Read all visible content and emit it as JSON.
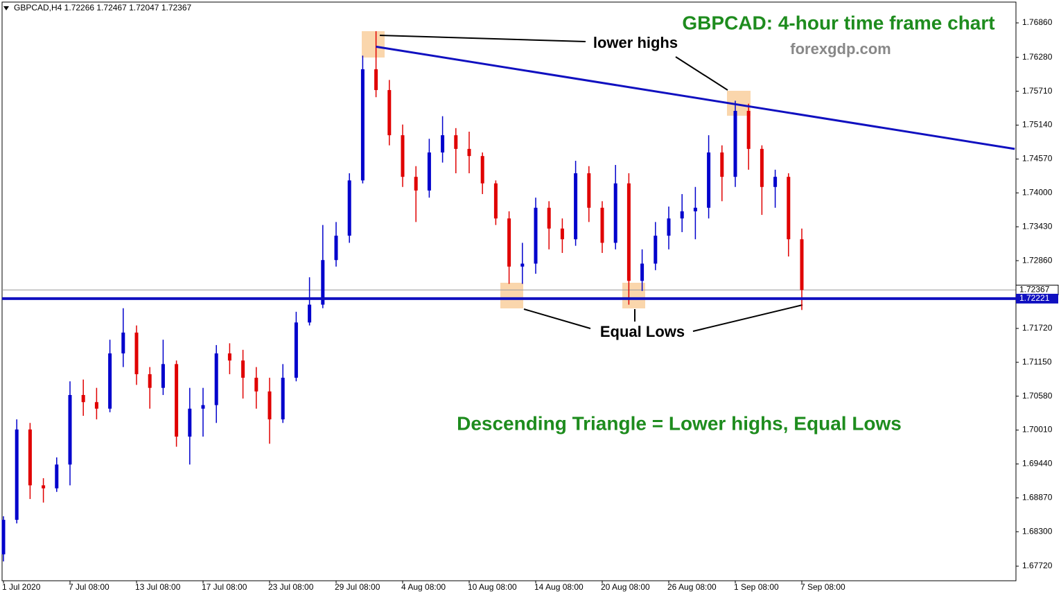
{
  "chart_data": {
    "type": "candlestick",
    "header": "GBPCAD,H4  1.72266 1.72467 1.72047 1.72367",
    "title": "GBPCAD: 4-hour time frame chart",
    "subtitle": "forexgdp.com",
    "annotations": [
      "lower highs",
      "Equal Lows",
      "Descending Triangle = Lower highs, Equal Lows"
    ],
    "up_color": "#0000cc",
    "down_color": "#e00000",
    "categories": [
      "1 Jul 2020",
      null,
      null,
      null,
      null,
      "7 Jul 08:00",
      null,
      null,
      null,
      null,
      "13 Jul 08:00",
      null,
      null,
      null,
      null,
      "17 Jul 08:00",
      null,
      null,
      null,
      null,
      "23 Jul 08:00",
      null,
      null,
      null,
      null,
      "29 Jul 08:00",
      null,
      null,
      null,
      null,
      "4 Aug 08:00",
      null,
      null,
      null,
      null,
      "10 Aug 08:00",
      null,
      null,
      null,
      null,
      "14 Aug 08:00",
      null,
      null,
      null,
      null,
      "20 Aug 08:00",
      null,
      null,
      null,
      null,
      "26 Aug 08:00",
      null,
      null,
      null,
      null,
      "1 Sep 08:00",
      null,
      null,
      null,
      null,
      "7 Sep 08:00"
    ],
    "open": [
      1.6792,
      1.685,
      1.7002,
      1.6908,
      1.6903,
      1.6943,
      1.706,
      1.7048,
      1.7037,
      1.713,
      1.7165,
      1.7095,
      1.7072,
      1.7112,
      1.699,
      1.7037,
      1.7043,
      1.713,
      1.7118,
      1.7089,
      1.7066,
      1.7019,
      1.7089,
      1.7182,
      1.7212,
      1.7287,
      1.7328,
      1.7421,
      1.7608,
      1.7573,
      1.7497,
      1.7427,
      1.7404,
      1.7468,
      1.7497,
      1.7474,
      1.7462,
      1.7416,
      1.7357,
      1.7276,
      1.7281,
      1.7375,
      1.734,
      1.7322,
      1.7433,
      1.7375,
      1.7316,
      1.7416,
      1.7252,
      1.7281,
      1.7328,
      1.7357,
      1.7369,
      1.7375,
      1.7468,
      1.7427,
      1.7538,
      1.7474,
      1.741,
      1.7427,
      1.7322
    ],
    "high": [
      1.6856,
      1.7019,
      1.7013,
      1.692,
      1.6955,
      1.7083,
      1.7086,
      1.7072,
      1.7153,
      1.7206,
      1.7177,
      1.7107,
      1.7153,
      1.7118,
      1.7072,
      1.7072,
      1.7144,
      1.7147,
      1.7136,
      1.7107,
      1.7089,
      1.7112,
      1.72,
      1.7258,
      1.7346,
      1.7351,
      1.7433,
      1.7631,
      1.7672,
      1.759,
      1.7515,
      1.7445,
      1.7491,
      1.7529,
      1.7509,
      1.7503,
      1.7468,
      1.7421,
      1.7369,
      1.7316,
      1.7392,
      1.7386,
      1.7357,
      1.7454,
      1.7445,
      1.7386,
      1.7447,
      1.7433,
      1.7305,
      1.7351,
      1.7377,
      1.7398,
      1.741,
      1.7497,
      1.748,
      1.7555,
      1.755,
      1.748,
      1.7439,
      1.7433,
      1.734
    ],
    "low": [
      1.678,
      1.6844,
      1.6885,
      1.6879,
      1.6897,
      1.6908,
      1.7025,
      1.7019,
      1.7031,
      1.7107,
      1.7077,
      1.7037,
      1.706,
      1.6973,
      1.6943,
      1.699,
      1.7013,
      1.7095,
      1.7054,
      1.7037,
      1.6978,
      1.7013,
      1.7083,
      1.7177,
      1.7206,
      1.7276,
      1.7316,
      1.7416,
      1.7561,
      1.748,
      1.741,
      1.7351,
      1.7392,
      1.7451,
      1.7433,
      1.7433,
      1.7398,
      1.7346,
      1.7247,
      1.7247,
      1.7264,
      1.7305,
      1.7299,
      1.7311,
      1.7351,
      1.7299,
      1.7305,
      1.7212,
      1.7235,
      1.727,
      1.7305,
      1.7334,
      1.7322,
      1.7357,
      1.7386,
      1.741,
      1.7439,
      1.7363,
      1.7375,
      1.7293,
      1.7203
    ],
    "close": [
      1.685,
      1.7002,
      1.6908,
      1.6903,
      1.6943,
      1.706,
      1.7048,
      1.7037,
      1.713,
      1.7165,
      1.7095,
      1.7072,
      1.7112,
      1.699,
      1.7037,
      1.7043,
      1.713,
      1.7118,
      1.7089,
      1.7066,
      1.7019,
      1.7089,
      1.7182,
      1.7212,
      1.7287,
      1.7328,
      1.7421,
      1.7608,
      1.7573,
      1.7497,
      1.7427,
      1.7404,
      1.7468,
      1.7497,
      1.7474,
      1.7462,
      1.7416,
      1.7357,
      1.7276,
      1.7281,
      1.7375,
      1.734,
      1.7322,
      1.7433,
      1.7375,
      1.7316,
      1.7416,
      1.7252,
      1.7281,
      1.7328,
      1.7357,
      1.7369,
      1.7375,
      1.7468,
      1.7427,
      1.7538,
      1.7474,
      1.741,
      1.7427,
      1.7322,
      1.72367
    ],
    "trendline": {
      "color": "#1010c0",
      "x": [
        28,
        76
      ],
      "values": [
        1.7646,
        1.7474
      ]
    },
    "support": {
      "value": 1.72221,
      "label": "1.72221",
      "color": "#1010c0"
    },
    "current_price": {
      "value": 1.72367,
      "label": "1.72367"
    },
    "ylim": [
      1.67475,
      1.77245
    ],
    "yticks": [
      {
        "value": 1.7686,
        "label": "1.76860"
      },
      {
        "value": 1.7628,
        "label": "1.76280"
      },
      {
        "value": 1.7571,
        "label": "1.75710"
      },
      {
        "value": 1.7514,
        "label": "1.75140"
      },
      {
        "value": 1.7457,
        "label": "1.74570"
      },
      {
        "value": 1.74,
        "label": "1.74000"
      },
      {
        "value": 1.7343,
        "label": "1.73430"
      },
      {
        "value": 1.7286,
        "label": "1.72860"
      },
      {
        "value": 1.7172,
        "label": "1.71720"
      },
      {
        "value": 1.7115,
        "label": "1.71150"
      },
      {
        "value": 1.7058,
        "label": "1.70580"
      },
      {
        "value": 1.7001,
        "label": "1.70010"
      },
      {
        "value": 1.6944,
        "label": "1.69440"
      },
      {
        "value": 1.6887,
        "label": "1.68870"
      },
      {
        "value": 1.683,
        "label": "1.68300"
      },
      {
        "value": 1.6772,
        "label": "1.67720"
      }
    ]
  }
}
